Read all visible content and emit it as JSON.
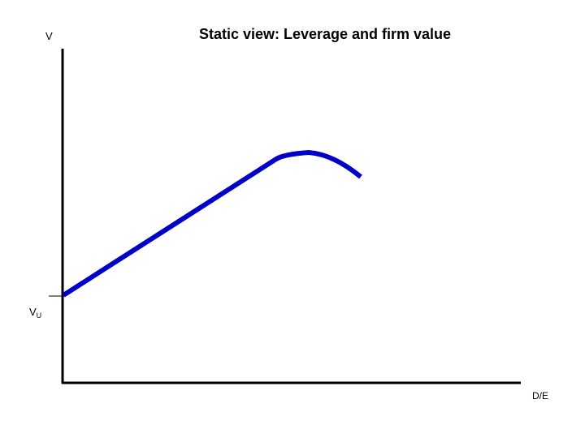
{
  "title": "Static view: Leverage and firm value",
  "y_axis_label": "V",
  "x_axis_label": "D/E",
  "unlevered_value_label": {
    "main": "V",
    "subscript": "U"
  }
}
